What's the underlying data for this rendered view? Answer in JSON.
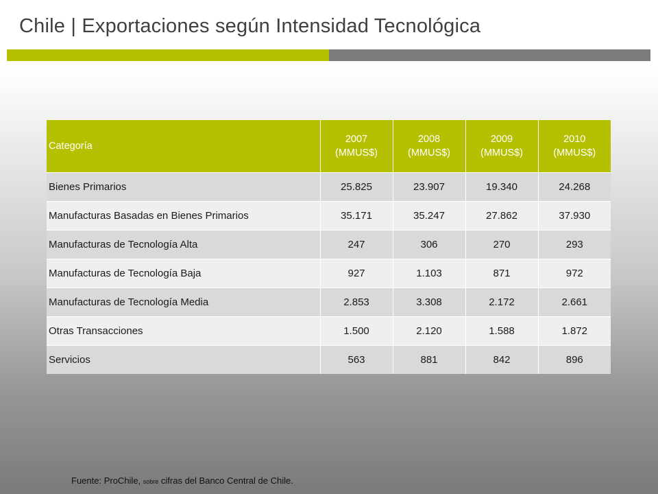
{
  "title": "Chile | Exportaciones  según Intensidad Tecnológica",
  "colors": {
    "accent": "#b5c000",
    "gray_bar": "#7b7b7b"
  },
  "table": {
    "headers": [
      "Categoría",
      "2007\n(MMUS$)",
      "2008\n(MMUS$)",
      "2009\n(MMUS$)",
      "2010\n(MMUS$)"
    ],
    "header_parts": [
      {
        "year": "2007",
        "unit": "(MMUS$)"
      },
      {
        "year": "2008",
        "unit": "(MMUS$)"
      },
      {
        "year": "2009",
        "unit": "(MMUS$)"
      },
      {
        "year": "2010",
        "unit": "(MMUS$)"
      }
    ],
    "rows": [
      [
        "Bienes Primarios",
        "25.825",
        "23.907",
        "19.340",
        "24.268"
      ],
      [
        "Manufacturas Basadas en Bienes Primarios",
        "35.171",
        "35.247",
        "27.862",
        "37.930"
      ],
      [
        "Manufacturas de Tecnología Alta",
        "247",
        "306",
        "270",
        "293"
      ],
      [
        "Manufacturas de Tecnología Baja",
        "927",
        "1.103",
        "871",
        "972"
      ],
      [
        "Manufacturas de Tecnología Media",
        "2.853",
        "3.308",
        "2.172",
        "2.661"
      ],
      [
        "Otras Transacciones",
        "1.500",
        "2.120",
        "1.588",
        "1.872"
      ],
      [
        "Servicios",
        "563",
        "881",
        "842",
        "896"
      ]
    ]
  },
  "source": {
    "prefix": "Fuente: ProChile, ",
    "small": "sobre",
    "suffix": " cifras del Banco Central de Chile."
  }
}
